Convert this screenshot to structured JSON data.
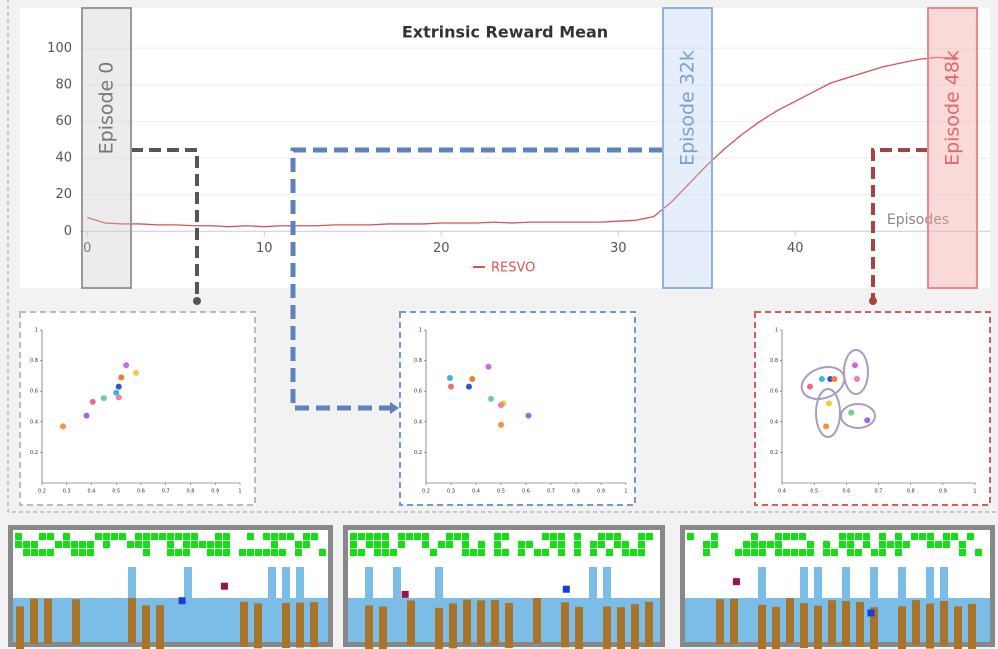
{
  "chart_data": [
    {
      "type": "line",
      "title": "Extrinsic Reward Mean",
      "x_label": "Episodes",
      "annotations": [
        "Episode 0",
        "Episode 32k",
        "Episode 48k"
      ],
      "x": [
        0,
        1,
        2,
        3,
        4,
        5,
        6,
        7,
        8,
        9,
        10,
        11,
        12,
        13,
        14,
        15,
        16,
        17,
        18,
        19,
        20,
        21,
        22,
        23,
        24,
        25,
        26,
        27,
        28,
        29,
        30,
        31,
        32,
        33,
        34,
        35,
        36,
        37,
        38,
        39,
        40,
        41,
        42,
        43,
        44,
        45,
        46,
        47,
        48,
        49
      ],
      "series": [
        {
          "name": "RESVO",
          "color": "#d9534f",
          "values": [
            7.5,
            4.5,
            4,
            4,
            3.5,
            3.5,
            3,
            3,
            2.5,
            3,
            2.5,
            3,
            3,
            3,
            3.5,
            3.5,
            3.5,
            4,
            4,
            4,
            4.5,
            4.5,
            4.5,
            5,
            4.5,
            5,
            5,
            5,
            5,
            5,
            5.5,
            6,
            8,
            16,
            26,
            36,
            45,
            53,
            60,
            66,
            71,
            76,
            81,
            84,
            87,
            90,
            92,
            94,
            95,
            94.5
          ]
        }
      ],
      "xlim": [
        -3.8,
        51
      ],
      "ylim": [
        -31,
        122
      ],
      "xticks": [
        0,
        10,
        20,
        30,
        40
      ],
      "yticks": [
        0,
        20,
        40,
        60,
        80,
        100
      ],
      "grid": true,
      "legend": "bottom"
    },
    {
      "type": "scatter",
      "xlim": [
        0.2,
        1
      ],
      "ylim": [
        0,
        1
      ],
      "xticks": [
        0.2,
        0.3,
        0.4,
        0.5,
        0.6,
        0.7,
        0.8,
        0.9,
        1
      ],
      "yticks": [
        0.2,
        0.4,
        0.6,
        0.8,
        1
      ],
      "x": [
        0.285,
        0.38,
        0.405,
        0.45,
        0.5,
        0.51,
        0.51,
        0.52,
        0.58,
        0.54
      ],
      "values": [
        0.37,
        0.44,
        0.53,
        0.555,
        0.59,
        0.56,
        0.63,
        0.69,
        0.72,
        0.77
      ],
      "colors": [
        "#f5923e",
        "#9b6be8",
        "#ef6b7b",
        "#6ecf8e",
        "#3cb8d6",
        "#ee7fa8",
        "#3355cc",
        "#f08030",
        "#f5c842",
        "#c96ae6"
      ]
    },
    {
      "type": "scatter",
      "xlim": [
        0.2,
        1
      ],
      "ylim": [
        0,
        1
      ],
      "xticks": [
        0.2,
        0.3,
        0.4,
        0.5,
        0.6,
        0.7,
        0.8,
        0.9,
        1
      ],
      "yticks": [
        0.2,
        0.4,
        0.6,
        0.8,
        1
      ],
      "x": [
        0.3,
        0.46,
        0.372,
        0.296,
        0.385,
        0.51,
        0.5,
        0.5,
        0.61,
        0.45
      ],
      "values": [
        0.63,
        0.55,
        0.63,
        0.686,
        0.68,
        0.52,
        0.51,
        0.38,
        0.44,
        0.76
      ],
      "colors": [
        "#ef6b7b",
        "#6ecf8e",
        "#3355cc",
        "#3cb8d6",
        "#f08030",
        "#f5c842",
        "#ee7fa8",
        "#f5923e",
        "#9b6be8",
        "#c96ae6"
      ]
    },
    {
      "type": "scatter",
      "xlim": [
        0.4,
        1
      ],
      "ylim": [
        0,
        1
      ],
      "xticks": [
        0.4,
        0.5,
        0.6,
        0.7,
        0.8,
        0.9,
        1
      ],
      "yticks": [
        0.2,
        0.4,
        0.6,
        0.8,
        1
      ],
      "x": [
        0.487,
        0.524,
        0.55,
        0.563,
        0.627,
        0.633,
        0.546,
        0.537,
        0.615,
        0.665
      ],
      "values": [
        0.63,
        0.68,
        0.68,
        0.68,
        0.77,
        0.68,
        0.52,
        0.37,
        0.46,
        0.41
      ],
      "colors": [
        "#ef6b7b",
        "#3cb8d6",
        "#3355cc",
        "#f08030",
        "#c96ae6",
        "#ee7fa8",
        "#f5c842",
        "#f5923e",
        "#6ecf8e",
        "#9b6be8"
      ]
    }
  ]
}
